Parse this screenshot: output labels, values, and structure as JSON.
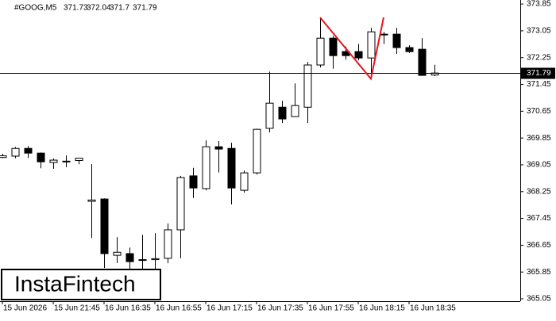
{
  "chart_data": {
    "type": "candlestick",
    "title": "#GOOG,M5",
    "brand": "InstaFintech",
    "categories": [
      "15 Jun 2026",
      null,
      null,
      null,
      "15 Jun 21:45",
      null,
      null,
      null,
      "16 Jun 16:35",
      null,
      null,
      null,
      "16 Jun 16:55",
      null,
      null,
      null,
      "16 Jun 17:15",
      null,
      null,
      null,
      "16 Jun 17:35",
      null,
      null,
      null,
      "16 Jun 17:55",
      null,
      null,
      null,
      "16 Jun 18:15",
      null,
      null,
      null,
      "16 Jun 18:35",
      null,
      null
    ],
    "open": [
      369.27,
      369.31,
      369.54,
      369.4,
      369.12,
      369.15,
      369.18,
      367.96,
      368.03,
      366.35,
      366.4,
      366.21,
      366.22,
      366.26,
      367.11,
      368.72,
      368.34,
      369.59,
      369.54,
      368.29,
      368.81,
      370.14,
      370.77,
      370.49,
      370.77,
      372.03,
      372.83,
      372.43,
      372.43,
      372.24,
      372.93,
      372.95,
      372.55,
      372.5,
      371.73
    ],
    "high": [
      369.38,
      369.58,
      369.61,
      369.42,
      369.24,
      369.33,
      369.26,
      369.07,
      368.05,
      366.89,
      366.58,
      366.96,
      367.01,
      367.3,
      368.72,
      368.96,
      369.78,
      369.76,
      369.71,
      368.88,
      370.13,
      371.83,
      370.96,
      371.48,
      372.12,
      373.45,
      372.9,
      372.58,
      372.66,
      373.14,
      373.02,
      373.14,
      372.62,
      372.83,
      372.04
    ],
    "low": [
      369.25,
      369.25,
      369.26,
      368.95,
      368.93,
      368.98,
      369.07,
      366.87,
      365.97,
      366.12,
      365.9,
      365.9,
      365.9,
      366.12,
      366.26,
      368.06,
      368.29,
      368.82,
      367.87,
      368.22,
      368.76,
      370.02,
      370.3,
      370.49,
      370.3,
      371.96,
      371.92,
      372.19,
      372.17,
      371.62,
      372.66,
      372.36,
      372.39,
      371.72,
      371.7
    ],
    "close": [
      369.32,
      369.54,
      369.4,
      369.14,
      369.19,
      369.16,
      369.25,
      368.0,
      366.4,
      366.44,
      366.16,
      366.22,
      366.25,
      367.11,
      368.67,
      368.36,
      369.59,
      369.52,
      368.36,
      368.81,
      370.11,
      370.89,
      370.42,
      370.82,
      372.03,
      372.83,
      372.31,
      372.31,
      372.24,
      373.02,
      372.95,
      372.55,
      372.43,
      371.72,
      371.79
    ],
    "up_color": "#ffffff",
    "down_color": "#000000",
    "pattern_color": "#e8141b",
    "ylim": [
      364.98,
      373.97
    ],
    "yticks": [
      365.05,
      365.85,
      366.65,
      367.45,
      368.25,
      369.05,
      369.85,
      370.65,
      371.45,
      372.25,
      373.05,
      373.85
    ]
  }
}
